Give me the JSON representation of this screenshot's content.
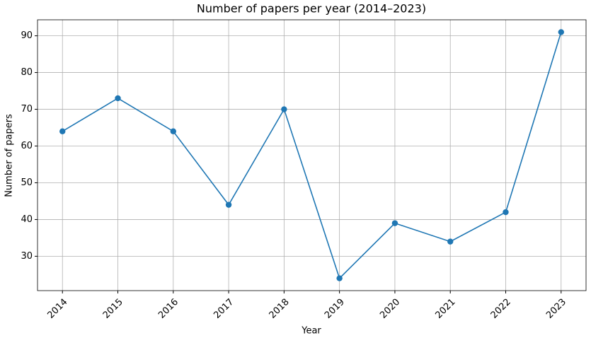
{
  "chart_data": {
    "type": "line",
    "title": "Number of papers per year (2014–2023)",
    "x_label": "Year",
    "y_label": "Number of papers",
    "x": [
      2014,
      2015,
      2016,
      2017,
      2018,
      2019,
      2020,
      2021,
      2022,
      2023
    ],
    "values": [
      64,
      73,
      64,
      44,
      70,
      24,
      39,
      34,
      42,
      91
    ],
    "color": "#1f77b4",
    "xlim": [
      2013.55,
      2023.45
    ],
    "xticks": [
      2014,
      2015,
      2016,
      2017,
      2018,
      2019,
      2020,
      2021,
      2022,
      2023
    ],
    "ylim": [
      20.65,
      94.35
    ],
    "yticks": [
      30,
      40,
      50,
      60,
      70,
      80,
      90
    ],
    "grid": true,
    "markers": true
  }
}
